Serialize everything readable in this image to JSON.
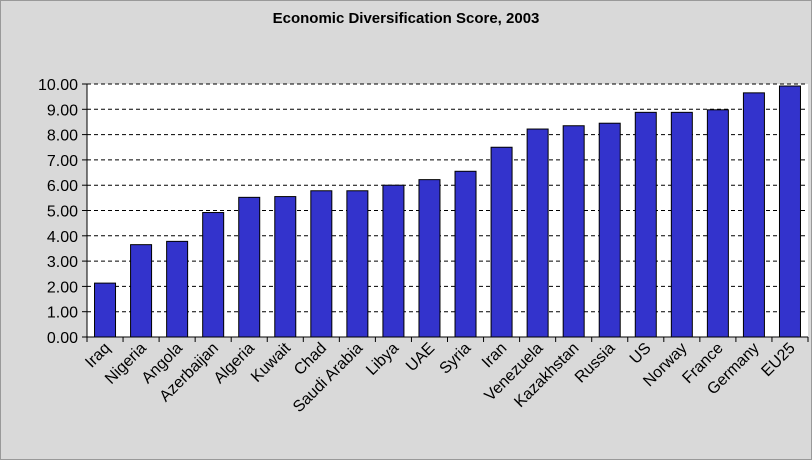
{
  "chart_data": {
    "type": "bar",
    "title": "Economic Diversification Score, 2003",
    "xlabel": "",
    "ylabel": "",
    "ylim": [
      0,
      10
    ],
    "yticks": [
      "0.00",
      "1.00",
      "2.00",
      "3.00",
      "4.00",
      "5.00",
      "6.00",
      "7.00",
      "8.00",
      "9.00",
      "10.00"
    ],
    "grid": true,
    "legend": "none",
    "categories": [
      "Iraq",
      "Nigeria",
      "Angola",
      "Azerbaijan",
      "Algeria",
      "Kuwait",
      "Chad",
      "Saudi Arabia",
      "Libya",
      "UAE",
      "Syria",
      "Iran",
      "Venezuela",
      "Kazakhstan",
      "Russia",
      "US",
      "Norway",
      "France",
      "Germany",
      "EU25"
    ],
    "values": [
      2.13,
      3.65,
      3.78,
      4.92,
      5.52,
      5.55,
      5.78,
      5.78,
      6.0,
      6.22,
      6.55,
      7.5,
      8.22,
      8.35,
      8.45,
      8.88,
      8.88,
      8.98,
      9.65,
      9.92
    ],
    "bar_color": "#3333cc"
  }
}
